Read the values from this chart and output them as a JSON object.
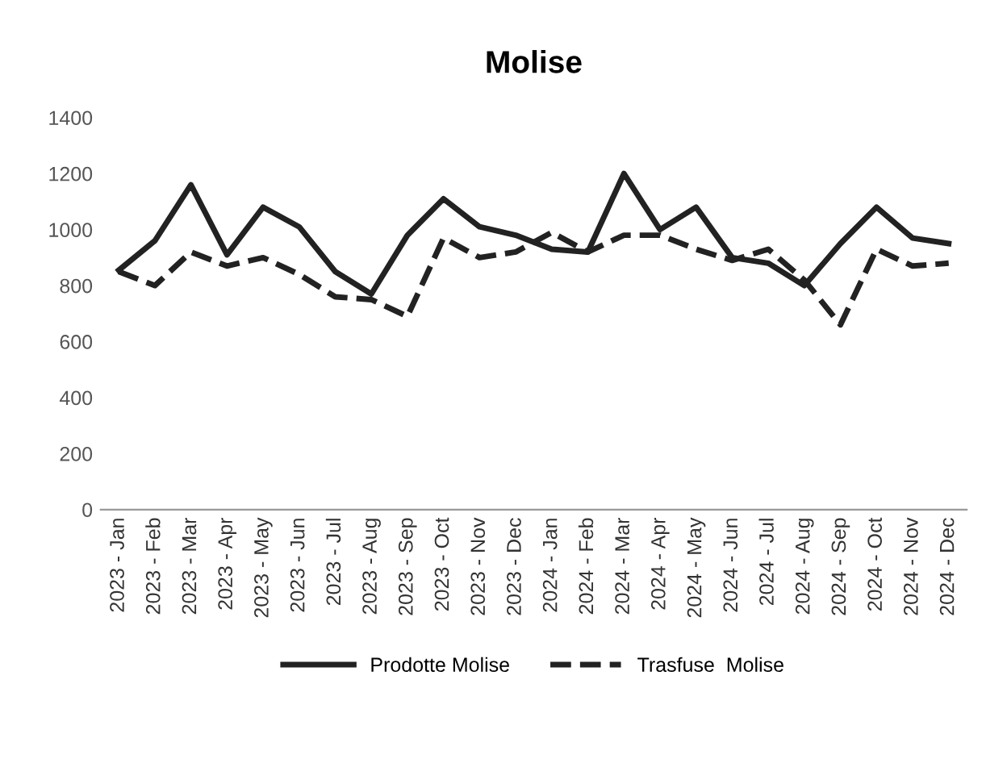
{
  "chart_data": {
    "type": "line",
    "title": "Molise",
    "categories": [
      "2023 - Jan",
      "2023 - Feb",
      "2023 - Mar",
      "2023 - Apr",
      "2023 - May",
      "2023 - Jun",
      "2023 - Jul",
      "2023 - Aug",
      "2023 - Sep",
      "2023 - Oct",
      "2023 - Nov",
      "2023 - Dec",
      "2024 - Jan",
      "2024 - Feb",
      "2024 - Mar",
      "2024 - Apr",
      "2024 - May",
      "2024 - Jun",
      "2024 - Jul",
      "2024 - Aug",
      "2024 - Sep",
      "2024 - Oct",
      "2024 - Nov",
      "2024 - Dec"
    ],
    "series": [
      {
        "name": "Prodotte Molise",
        "color": "#222222",
        "line_style": "solid",
        "values": [
          855,
          960,
          1160,
          910,
          1080,
          1010,
          850,
          770,
          980,
          1110,
          1010,
          980,
          930,
          920,
          1200,
          1000,
          1080,
          900,
          880,
          800,
          950,
          1080,
          970,
          950
        ]
      },
      {
        "name": "Trasfuse  Molise",
        "color": "#222222",
        "line_style": "dashed",
        "values": [
          850,
          800,
          920,
          870,
          900,
          840,
          760,
          750,
          690,
          970,
          900,
          920,
          990,
          920,
          980,
          980,
          930,
          890,
          930,
          820,
          660,
          930,
          870,
          880
        ]
      }
    ],
    "ylim": [
      0,
      1400
    ],
    "yticks": [
      0,
      200,
      400,
      600,
      800,
      1000,
      1200,
      1400
    ],
    "grid": false,
    "legend": "bottom"
  }
}
